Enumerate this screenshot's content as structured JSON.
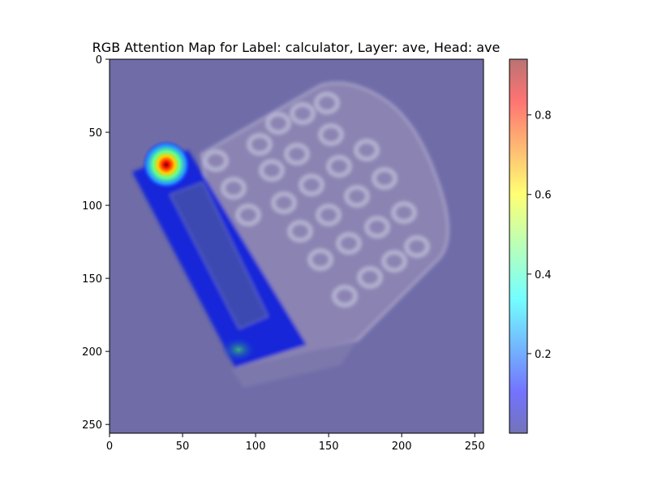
{
  "chart_data": [
    {
      "type": "heatmap",
      "title": "RGB Attention Map for Label: calculator, Layer: ave, Head: ave",
      "xlabel": "",
      "ylabel": "",
      "xlim": [
        0,
        256
      ],
      "ylim": [
        256,
        0
      ],
      "x_ticks": [
        0,
        50,
        100,
        150,
        200,
        250
      ],
      "y_ticks": [
        0,
        50,
        100,
        150,
        200,
        250
      ],
      "grid": false,
      "underlay": "photo of a calculator",
      "attention_peaks": [
        {
          "x": 39,
          "y": 72,
          "value": 0.94
        },
        {
          "x": 88,
          "y": 198,
          "value": 0.3
        }
      ],
      "colormap": "jet",
      "overlay_alpha": 0.5
    },
    {
      "type": "colorbar",
      "range": [
        0.0,
        0.94
      ],
      "ticks": [
        0.2,
        0.4,
        0.6,
        0.8
      ],
      "tick_labels": [
        "0.2",
        "0.4",
        "0.6",
        "0.8"
      ],
      "colormap": "jet"
    }
  ]
}
